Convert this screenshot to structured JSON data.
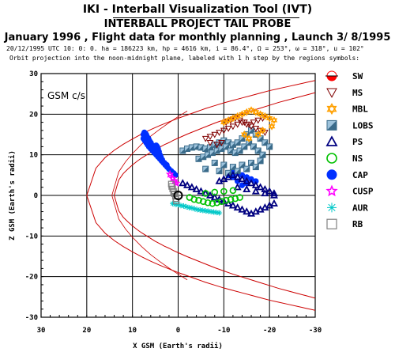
{
  "header": {
    "title": "IKI - Interball Visualization Tool (IVT)",
    "subtitle": "INTERBALL PROJECT TAIL PROBE",
    "line3": "January 1996 ,  Flight data for monthly planning ,   Launch  3/ 8/1995",
    "info1": "20/12/1995 UTC 10: 0: 0. ha = 186223 km, hp =    4616 km, i = 86.4°, Ω = 253°, ω = 318°, u = 102°",
    "info2": "Orbit projection into the noon-midnight plane, labeled with 1 h step by the regions symbols:"
  },
  "chart_data": {
    "type": "scatter",
    "title": "",
    "inset_label": "GSM c/s",
    "xlabel": "X GSM (Earth's radii)",
    "ylabel": "Z GSM (Earth's radii)",
    "xlim": [
      30,
      -30
    ],
    "ylim": [
      -30,
      30
    ],
    "x_ticks": [
      "30",
      "20",
      "10",
      "0",
      "-10",
      "-20",
      "-30"
    ],
    "y_ticks": [
      "30",
      "20",
      "10",
      "0",
      "-10",
      "-20",
      "-30"
    ],
    "grid": true,
    "legend": [
      {
        "code": "SW",
        "color": "#ff0000",
        "icon": "half-circle-icon"
      },
      {
        "code": "MS",
        "color": "#800000",
        "icon": "down-triangle-icon"
      },
      {
        "code": "MBL",
        "color": "#ffa000",
        "icon": "star-of-david-icon"
      },
      {
        "code": "LOBS",
        "color": "#3a6b8a",
        "icon": "split-square-icon"
      },
      {
        "code": "PS",
        "color": "#000080",
        "icon": "triangle-icon"
      },
      {
        "code": "NS",
        "color": "#00c000",
        "icon": "circle-icon"
      },
      {
        "code": "CAP",
        "color": "#0030ff",
        "icon": "filled-circle-icon"
      },
      {
        "code": "CUSP",
        "color": "#ff00ff",
        "icon": "star-icon"
      },
      {
        "code": "AUR",
        "color": "#00c8c8",
        "icon": "asterisk-icon"
      },
      {
        "code": "RB",
        "color": "#808080",
        "icon": "square-icon"
      }
    ],
    "series": [
      {
        "name": "CAP",
        "marker": "filled-circle",
        "color": "#0030ff",
        "x": [
          2.5,
          3,
          3.5,
          3.8,
          4,
          4.2,
          4.4,
          4.6,
          4.8,
          5,
          5.2,
          5.4,
          5.6,
          5.8,
          6,
          6.3,
          6.5,
          6.8,
          7,
          7.2,
          7.4,
          7.6,
          7.6,
          7.3,
          7,
          6.7,
          6.4,
          6,
          5.6,
          5.2,
          4.8,
          4.4,
          4,
          3.6,
          3.2,
          2.8,
          2.4,
          2,
          1.5,
          1,
          0.6,
          -12,
          -13,
          -14,
          -15,
          -16,
          -17,
          -15,
          -14,
          -13,
          -12,
          -11
        ],
        "y": [
          7.5,
          8,
          8.8,
          9.5,
          10,
          10.8,
          11.5,
          12,
          12.3,
          12.2,
          11.5,
          11,
          11.5,
          12.5,
          13,
          13.5,
          14,
          14.5,
          15,
          15.3,
          15.5,
          15,
          14,
          13.5,
          13,
          12.5,
          12,
          11.5,
          11,
          10.5,
          10,
          9.5,
          9,
          8.5,
          8,
          7.5,
          7,
          6.5,
          6,
          5.5,
          5,
          6,
          5.5,
          5,
          4.5,
          4,
          3.5,
          3,
          2.5,
          3.5,
          4.5,
          5
        ]
      },
      {
        "name": "LOBS",
        "marker": "split-square",
        "color": "#3a6b8a",
        "x": [
          -1,
          -2,
          -3,
          -4,
          -5,
          -6,
          -7,
          -8,
          -9,
          -10,
          -11,
          -12,
          -13,
          -14,
          -15,
          -16,
          -17,
          -18,
          -19,
          -20,
          -4.5,
          -5.5,
          -6.5,
          -7.5,
          -8.5,
          -9.5,
          -10.5,
          -11.5,
          -12.5,
          -13.5,
          -14.5,
          -15.5,
          -16.5,
          -17.5,
          -18.5,
          -8,
          -10,
          -12,
          -14,
          -16,
          -18,
          -6,
          -9,
          -11,
          -13,
          -15,
          -17
        ],
        "y": [
          11,
          11.5,
          11.8,
          12,
          11.8,
          11.5,
          11.8,
          12.5,
          13,
          13.5,
          13,
          12.5,
          13,
          14,
          15,
          16,
          15,
          14,
          13,
          12,
          9,
          9.5,
          10,
          10.5,
          11,
          11.5,
          12,
          11,
          10.5,
          11,
          12,
          13,
          12,
          11,
          10,
          8,
          7.5,
          7,
          7.5,
          8,
          8.5,
          6.5,
          6,
          5.5,
          6,
          6.5,
          7
        ]
      },
      {
        "name": "MS",
        "marker": "down-triangle",
        "color": "#800000",
        "x": [
          -6,
          -7,
          -8,
          -9,
          -10,
          -11,
          -12,
          -13,
          -14,
          -15,
          -16,
          -17,
          -18,
          -19,
          -10.5,
          -11.5,
          -12.5,
          -13.5,
          -14.5,
          -15.5,
          -16.5,
          -17.5,
          -18.5,
          -7,
          -8.5,
          -9.5
        ],
        "y": [
          14,
          14.5,
          15,
          15.5,
          16,
          16.5,
          17,
          17.5,
          18,
          17.5,
          17,
          16.5,
          16,
          15.5,
          18,
          18.5,
          19,
          18.5,
          18,
          17.5,
          18,
          18.5,
          19,
          13,
          12.5,
          13
        ]
      },
      {
        "name": "MBL",
        "marker": "star-of-david",
        "color": "#ffa000",
        "x": [
          -10,
          -11,
          -12,
          -13,
          -14,
          -15,
          -16,
          -17,
          -18,
          -19,
          -20,
          -21,
          -14.5,
          -15.5,
          -17.5,
          -18.5,
          -20.5
        ],
        "y": [
          18,
          18.5,
          19,
          19.5,
          20,
          20.5,
          21,
          20.5,
          20,
          19.5,
          19,
          18.5,
          15,
          14,
          15,
          16,
          17
        ]
      },
      {
        "name": "PS",
        "marker": "triangle",
        "color": "#000080",
        "x": [
          -1,
          -2,
          -3,
          -4,
          -5,
          -6,
          -7,
          -8,
          -9,
          -10,
          -11,
          -12,
          -13,
          -14,
          -15,
          -16,
          -17,
          -18,
          -19,
          -20,
          -21,
          -9,
          -10,
          -11,
          -12,
          -13,
          -14,
          -15,
          -16,
          -17,
          -18,
          -19,
          -20,
          -21,
          -13,
          -15,
          -17,
          -19,
          -21
        ],
        "y": [
          3,
          2.5,
          2,
          1.5,
          1,
          0.5,
          0,
          -0.5,
          -1,
          -1.5,
          -2,
          -2.5,
          -3,
          -3.5,
          -4,
          -4.5,
          -4,
          -3.5,
          -3,
          -2.5,
          -2,
          3.5,
          4,
          4.5,
          5,
          4.5,
          4,
          3.5,
          3,
          2.5,
          2,
          1.5,
          1,
          0.5,
          2,
          1.5,
          1,
          0.5,
          0
        ]
      },
      {
        "name": "NS",
        "marker": "circle",
        "color": "#00c000",
        "x": [
          -2.5,
          -3.5,
          -4.5,
          -5.5,
          -6.5,
          -7.5,
          -8.5,
          -9.5,
          -10.5,
          -11.5,
          -12.5,
          -13.5,
          -6,
          -8,
          -10,
          -12
        ],
        "y": [
          -0.5,
          -1,
          -1.2,
          -1.5,
          -1.8,
          -2,
          -1.8,
          -1.5,
          -1.2,
          -1,
          -0.8,
          -0.5,
          0.5,
          0.8,
          1,
          1.2
        ]
      },
      {
        "name": "CUSP",
        "marker": "star",
        "color": "#ff00ff",
        "x": [
          1.8,
          1.2,
          0.8,
          0.4
        ],
        "y": [
          5.2,
          4.2,
          3.6,
          3
        ]
      },
      {
        "name": "AUR",
        "marker": "asterisk",
        "color": "#00c8c8",
        "x": [
          1.2,
          0.6,
          0,
          -0.6,
          -1.2,
          -1.8,
          -2.4,
          -3,
          -3.6,
          -4.2,
          -4.8,
          -5.4,
          -6,
          -6.6,
          -7.2,
          -7.8,
          -8.4,
          -9
        ],
        "y": [
          -2,
          -2.2,
          -2.3,
          -2.5,
          -2.6,
          -2.8,
          -3,
          -3.1,
          -3.3,
          -3.5,
          -3.6,
          -3.7,
          -3.8,
          -3.9,
          -4,
          -4.1,
          -4.2,
          -4.3
        ]
      },
      {
        "name": "RB",
        "marker": "square",
        "color": "#808080",
        "x": [
          1.5,
          1.4,
          1.2,
          1,
          0.8,
          0.6,
          0.5,
          0.4
        ],
        "y": [
          2.8,
          2.2,
          1.6,
          1,
          0.4,
          -0.2,
          -0.8,
          -1.4
        ]
      }
    ],
    "boundaries": {
      "color": "#cc0000",
      "magnetopause": {
        "x": [
          20,
          18,
          16,
          14,
          12,
          10,
          8,
          6,
          4,
          2,
          0,
          -2,
          -4,
          -6,
          -8,
          -10,
          -12,
          -14,
          -16,
          -18,
          -20,
          -22,
          -24,
          -26,
          -28,
          -30
        ],
        "z_upper": [
          0,
          6.7,
          9.3,
          11.1,
          12.6,
          13.9,
          15.1,
          16.2,
          17.2,
          18.1,
          19,
          19.8,
          20.6,
          21.4,
          22.1,
          22.8,
          23.4,
          24,
          24.6,
          25.2,
          25.8,
          26.3,
          26.8,
          27.3,
          27.8,
          28.3
        ]
      },
      "bow_shock": {
        "x": [
          14,
          13,
          12,
          11,
          10,
          9,
          8,
          7,
          6,
          5,
          4,
          3,
          2,
          1,
          0,
          -2,
          -4,
          -6,
          -8,
          -10,
          -12,
          -14,
          -16,
          -18,
          -20,
          -22,
          -24,
          -26,
          -28,
          -30
        ],
        "z_upper": [
          0,
          3.8,
          5.4,
          6.5,
          7.5,
          8.4,
          9.2,
          9.9,
          10.6,
          11.3,
          11.9,
          12.5,
          13,
          13.6,
          14.1,
          15.1,
          16,
          16.9,
          17.8,
          18.6,
          19.4,
          20.1,
          20.8,
          21.5,
          22.2,
          22.9,
          23.5,
          24.1,
          24.7,
          25.3
        ]
      },
      "inner_bow": {
        "x": [
          14.5,
          13,
          11.5,
          10,
          8,
          6,
          4,
          2,
          0,
          -2
        ],
        "z_upper": [
          0,
          5.8,
          8.3,
          10.3,
          12.6,
          14.6,
          16.3,
          17.9,
          19.4,
          20.8
        ]
      }
    },
    "earth": {
      "x": 0,
      "z": 0,
      "r": 1,
      "color": "#000000"
    }
  }
}
